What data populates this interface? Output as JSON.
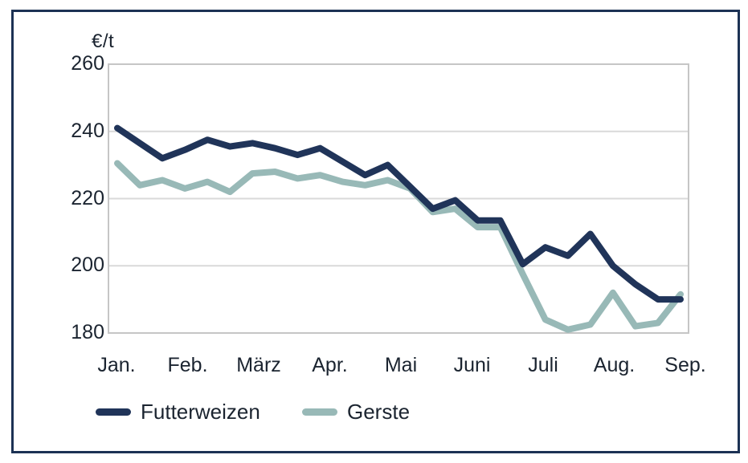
{
  "figure": {
    "unit_label": "€/t",
    "frame_color": "#1c3254",
    "background_color": "#ffffff",
    "text_color": "#1b2430"
  },
  "chart_data": {
    "type": "line",
    "title": "",
    "xlabel": "",
    "ylabel": "€/t",
    "ylim": [
      180,
      260
    ],
    "y_ticks": [
      260,
      240,
      220,
      200,
      180
    ],
    "x_tick_labels": [
      "Jan.",
      "Feb.",
      "März",
      "Apr.",
      "Mai",
      "Juni",
      "Juli",
      "Aug.",
      "Sep."
    ],
    "grid": true,
    "grid_color": "#d9d9d9",
    "plot_border_color": "#c6c6c6",
    "legend_position": "bottom",
    "series": [
      {
        "name": "Futterweizen",
        "color": "#203459",
        "values": [
          241,
          236.5,
          232,
          234.5,
          237.5,
          235.5,
          236.5,
          235,
          233,
          235,
          231,
          227,
          230,
          223.5,
          217,
          219.5,
          213.5,
          213.5,
          200.5,
          205.5,
          203,
          209.5,
          200,
          194.5,
          190,
          190
        ]
      },
      {
        "name": "Gerste",
        "color": "#98b9b7",
        "values": [
          230.5,
          224,
          225.5,
          223,
          225,
          222,
          227.5,
          228,
          226,
          227,
          225,
          224,
          225.5,
          223,
          216,
          217,
          211.5,
          211.5,
          197.5,
          184,
          181,
          182.5,
          192,
          182,
          183,
          191.5
        ]
      }
    ],
    "legend": {
      "items": [
        {
          "label": "Futterweizen",
          "color": "#203459"
        },
        {
          "label": "Gerste",
          "color": "#98b9b7"
        }
      ]
    }
  }
}
